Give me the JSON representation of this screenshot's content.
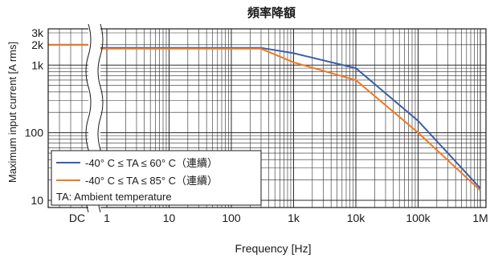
{
  "chart_data": {
    "type": "line",
    "title": "頻率降額",
    "xlabel": "Frequency [Hz]",
    "ylabel": "Maximum input current [A rms]",
    "x_scale": "log",
    "y_scale": "log",
    "xlim": [
      1,
      1000000
    ],
    "ylim": [
      10,
      3000
    ],
    "x_ticks": [
      "DC",
      "1",
      "10",
      "100",
      "1k",
      "10k",
      "100k",
      "1M"
    ],
    "y_ticks": [
      "10",
      "100",
      "1k",
      "2k",
      "3k"
    ],
    "grid": true,
    "legend_position": "bottom-left",
    "axis_break": "between DC and 1 Hz",
    "series": [
      {
        "name": "-40° C ≤ TA ≤ 60° C（連續）",
        "color": "#3a5fa8",
        "dc_value": 2000,
        "x": [
          1,
          300,
          1000,
          10000,
          100000,
          1000000
        ],
        "y": [
          1800,
          1800,
          1500,
          900,
          150,
          15
        ]
      },
      {
        "name": "-40° C ≤ TA ≤ 85° C（連續）",
        "color": "#f07820",
        "dc_value": 2000,
        "x": [
          1,
          300,
          1000,
          10000,
          100000,
          1000000
        ],
        "y": [
          1750,
          1750,
          1100,
          600,
          100,
          14
        ]
      }
    ],
    "legend_note": "TA: Ambient temperature"
  }
}
